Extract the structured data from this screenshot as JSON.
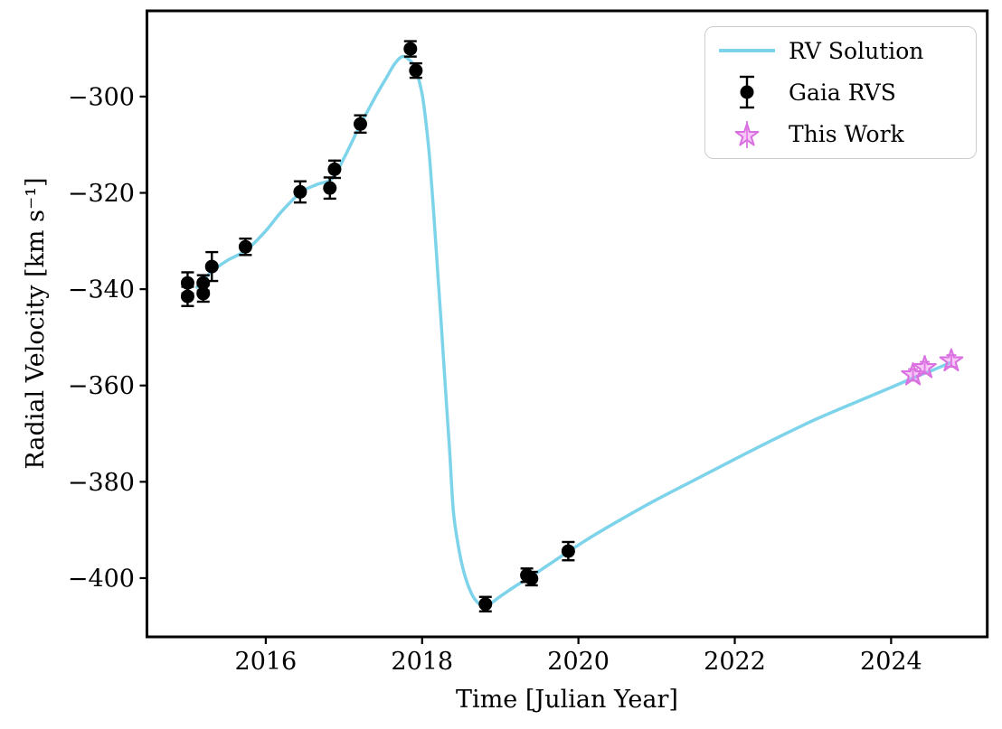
{
  "legend": {
    "items": [
      {
        "label": "RV Solution",
        "marker": "line"
      },
      {
        "label": "Gaia RVS",
        "marker": "errorbar-point"
      },
      {
        "label": "This Work",
        "marker": "star"
      }
    ]
  },
  "colors": {
    "rv_line": "#7CD3EA",
    "gaia_point": "#000000",
    "star_fill": "#EE82EE",
    "star_edge": "#D96FE0",
    "axis": "#000000",
    "legend_border": "#cccccc",
    "background": "#ffffff"
  },
  "chart_data": {
    "type": "line",
    "title": "",
    "xlabel": "Time [Julian Year]",
    "ylabel": "Radial Velocity [km s⁻¹]",
    "xlim": [
      2014.48,
      2025.23
    ],
    "ylim": [
      -412.2,
      -282.2
    ],
    "grid": false,
    "legend_position": "upper right",
    "x_ticks": {
      "values": [
        2016,
        2018,
        2020,
        2022,
        2024
      ],
      "labels": [
        "2016",
        "2018",
        "2020",
        "2022",
        "2024"
      ]
    },
    "y_ticks": {
      "values": [
        -300,
        -320,
        -340,
        -360,
        -380,
        -400
      ],
      "labels": [
        "−300",
        "−320",
        "−340",
        "−360",
        "−380",
        "−400"
      ]
    },
    "series": [
      {
        "name": "RV Solution",
        "type": "line",
        "linewidth": 3.5,
        "x_units": "Julian Year",
        "points": [
          [
            2015.12,
            -339.6
          ],
          [
            2015.3,
            -336.5
          ],
          [
            2015.5,
            -334.1
          ],
          [
            2015.75,
            -331.9
          ],
          [
            2016.0,
            -327.9
          ],
          [
            2016.2,
            -323.9
          ],
          [
            2016.45,
            -319.9
          ],
          [
            2016.65,
            -318.3
          ],
          [
            2016.85,
            -317.0
          ],
          [
            2017.0,
            -312.8
          ],
          [
            2017.2,
            -306.2
          ],
          [
            2017.4,
            -300.1
          ],
          [
            2017.55,
            -295.9
          ],
          [
            2017.65,
            -293.2
          ],
          [
            2017.75,
            -291.7
          ],
          [
            2017.85,
            -292.6
          ],
          [
            2017.92,
            -294.5
          ],
          [
            2018.0,
            -299.5
          ],
          [
            2018.05,
            -305.5
          ],
          [
            2018.1,
            -313.5
          ],
          [
            2018.15,
            -324.5
          ],
          [
            2018.2,
            -336.5
          ],
          [
            2018.25,
            -348.5
          ],
          [
            2018.3,
            -361.0
          ],
          [
            2018.35,
            -373.0
          ],
          [
            2018.4,
            -386.0
          ],
          [
            2018.46,
            -393.0
          ],
          [
            2018.53,
            -398.5
          ],
          [
            2018.62,
            -402.8
          ],
          [
            2018.7,
            -404.9
          ],
          [
            2018.78,
            -405.7
          ],
          [
            2018.88,
            -405.2
          ],
          [
            2019.0,
            -403.8
          ],
          [
            2019.2,
            -401.6
          ],
          [
            2019.39,
            -399.7
          ],
          [
            2019.63,
            -397.1
          ],
          [
            2019.87,
            -394.5
          ],
          [
            2020.2,
            -391.1
          ],
          [
            2020.6,
            -387.3
          ],
          [
            2021.0,
            -383.7
          ],
          [
            2021.5,
            -379.5
          ],
          [
            2022.0,
            -375.3
          ],
          [
            2022.5,
            -371.2
          ],
          [
            2023.0,
            -367.3
          ],
          [
            2023.5,
            -363.8
          ],
          [
            2024.0,
            -360.4
          ],
          [
            2024.3,
            -358.3
          ],
          [
            2024.55,
            -356.7
          ],
          [
            2024.75,
            -355.3
          ]
        ]
      },
      {
        "name": "Gaia RVS",
        "type": "scatter-errorbar",
        "marker": "circle",
        "points": [
          [
            2015.0,
            -338.7,
            2.2
          ],
          [
            2015.0,
            -341.5,
            2.0
          ],
          [
            2015.2,
            -338.7,
            1.6
          ],
          [
            2015.2,
            -340.9,
            1.7
          ],
          [
            2015.31,
            -335.3,
            3.0
          ],
          [
            2015.74,
            -331.2,
            1.7
          ],
          [
            2016.44,
            -319.8,
            2.2
          ],
          [
            2016.82,
            -319.0,
            2.2
          ],
          [
            2016.88,
            -315.1,
            1.8
          ],
          [
            2017.21,
            -305.7,
            1.8
          ],
          [
            2017.85,
            -290.1,
            1.6
          ],
          [
            2017.92,
            -294.6,
            1.5
          ],
          [
            2018.81,
            -405.4,
            1.5
          ],
          [
            2019.34,
            -399.4,
            1.4
          ],
          [
            2019.4,
            -400.1,
            1.4
          ],
          [
            2019.87,
            -394.4,
            1.9
          ]
        ]
      },
      {
        "name": "This Work",
        "type": "star-errorbar",
        "marker": "star",
        "points": [
          [
            2024.28,
            -357.8,
            1.2
          ],
          [
            2024.43,
            -356.3,
            1.2
          ],
          [
            2024.77,
            -354.9,
            1.2
          ]
        ]
      }
    ]
  }
}
